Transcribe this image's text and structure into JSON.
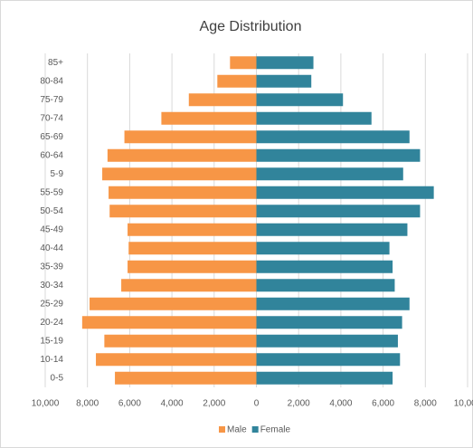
{
  "chart_data": {
    "type": "pyramid",
    "title": "Age Distribution",
    "categories": [
      "85+",
      "80-84",
      "75-79",
      "70-74",
      "65-69",
      "60-64",
      "5-9",
      "55-59",
      "50-54",
      "45-49",
      "40-44",
      "35-39",
      "30-34",
      "25-29",
      "20-24",
      "15-19",
      "10-14",
      "0-5"
    ],
    "series": [
      {
        "name": "Male",
        "color": "#f79646",
        "values": [
          -1250,
          -1850,
          -3200,
          -4500,
          -6250,
          -7050,
          -7300,
          -7000,
          -6950,
          -6100,
          -6050,
          -6100,
          -6400,
          -7900,
          -8250,
          -7200,
          -7600,
          -6700
        ]
      },
      {
        "name": "Female",
        "color": "#31849b",
        "values": [
          2700,
          2600,
          4100,
          5450,
          7250,
          7750,
          6950,
          8400,
          7750,
          7150,
          6300,
          6450,
          6550,
          7250,
          6900,
          6700,
          6800,
          6450
        ]
      }
    ],
    "xlim": [
      -10000,
      10000
    ],
    "xticks": [
      {
        "value": -10000,
        "label": "10,000"
      },
      {
        "value": -8000,
        "label": "8,000"
      },
      {
        "value": -6000,
        "label": "6,000"
      },
      {
        "value": -4000,
        "label": "4,000"
      },
      {
        "value": -2000,
        "label": "2,000"
      },
      0,
      {
        "value": 2000,
        "label": "2,000"
      },
      {
        "value": 4000,
        "label": "4,000"
      },
      {
        "value": 6000,
        "label": "6,000"
      },
      {
        "value": 8000,
        "label": "8,000"
      },
      {
        "value": 10000,
        "label": "10,000"
      }
    ],
    "grid": true,
    "legend": "bottom"
  }
}
